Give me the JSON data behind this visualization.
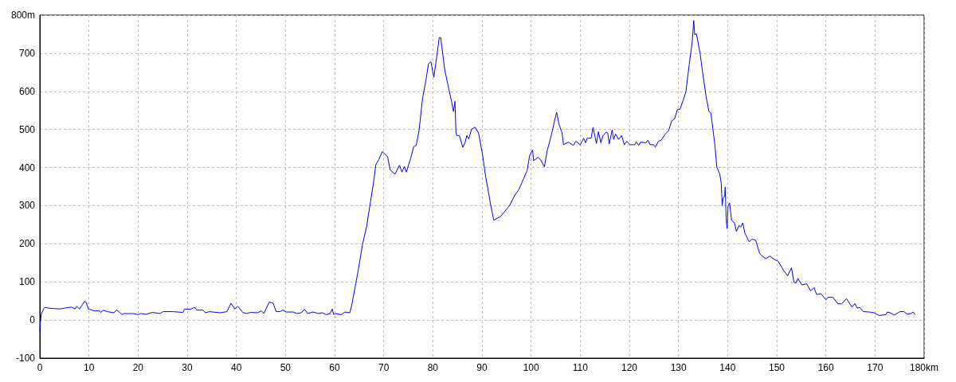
{
  "chart_data": {
    "type": "line",
    "grid": true,
    "marker": "none",
    "line_style": "solid",
    "xlim": [
      0,
      180
    ],
    "xticks": [
      0,
      10,
      20,
      30,
      40,
      50,
      60,
      70,
      80,
      90,
      100,
      110,
      120,
      130,
      140,
      150,
      160,
      170,
      {
        "value": 180,
        "label": "180km"
      }
    ],
    "ylim": [
      -100,
      800
    ],
    "yticks": [
      -100,
      0,
      100,
      200,
      300,
      400,
      500,
      600,
      700,
      {
        "value": 800,
        "label": "800m"
      }
    ],
    "x": [
      0,
      0.1,
      0.3,
      0.8,
      1.0,
      2.0,
      3.0,
      4.0,
      5.0,
      6.4,
      7.2,
      7.5,
      8.1,
      9.1,
      9.4,
      9.9,
      10.5,
      11,
      12.1,
      12.4,
      12.9,
      13.7,
      15.1,
      15.6,
      16.1,
      16.7,
      17.2,
      18.9,
      20,
      20.5,
      21.6,
      22.9,
      24.5,
      25.1,
      27,
      29.1,
      29.5,
      30.5,
      31.6,
      31.9,
      33.2,
      33.7,
      34.5,
      36.7,
      38.1,
      38.9,
      39.7,
      40.3,
      41.3,
      42.1,
      42.9,
      44.3,
      45.1,
      45.6,
      46.7,
      47.5,
      48.1,
      48.9,
      49.4,
      50.2,
      51.6,
      52.3,
      53.2,
      53.9,
      54.5,
      55.6,
      56.7,
      57.5,
      58.3,
      59.1,
      59.5,
      59.8,
      60.2,
      61.3,
      62.1,
      63.1,
      63.5,
      64.3,
      64.8,
      65.7,
      66.5,
      67.3,
      67.9,
      68.4,
      69,
      69.7,
      70.3,
      70.8,
      71.3,
      72.3,
      73.2,
      73.7,
      74.2,
      74.6,
      75.5,
      76.1,
      76.6,
      77.2,
      77.9,
      78.6,
      79.1,
      79.6,
      80.2,
      80.8,
      81.3,
      81.6,
      82.4,
      83.2,
      83.8,
      84.2,
      84.5,
      84.7,
      84.9,
      85.4,
      86.1,
      86.6,
      86.9,
      87.3,
      87.9,
      88.6,
      89.3,
      90.1,
      90.7,
      91.8,
      92.4,
      93.1,
      93.8,
      94.5,
      95.6,
      96.7,
      97.5,
      98.4,
      99.2,
      99.7,
      100.3,
      100.5,
      101.4,
      101.9,
      102.7,
      103.3,
      104.1,
      104.9,
      105.2,
      105.7,
      106.3,
      106.6,
      107.6,
      108.6,
      109.1,
      110,
      110.7,
      111.1,
      111.4,
      112.2,
      112.6,
      113.3,
      113.7,
      114.2,
      114.6,
      115.3,
      115.6,
      115.9,
      116.5,
      116.8,
      117.2,
      117.8,
      118.4,
      119,
      119.5,
      120.1,
      121.1,
      121.4,
      121.9,
      122.3,
      123.4,
      123.8,
      124.2,
      124.9,
      125.3,
      125.9,
      126.5,
      127.3,
      128,
      128.6,
      129.2,
      129.8,
      130.3,
      131,
      131.5,
      132.2,
      132.8,
      133.1,
      133.3,
      133.6,
      133.8,
      134.4,
      134.9,
      135.6,
      136.2,
      136.6,
      137.1,
      137.4,
      137.8,
      138.4,
      138.7,
      138.9,
      139.1,
      139.4,
      139.5,
      139.7,
      139.9,
      140.1,
      140.4,
      140.8,
      141.4,
      141.8,
      142.3,
      142.7,
      143.1,
      143.5,
      144.4,
      144.9,
      145.7,
      146.5,
      147,
      147.8,
      148.6,
      149.5,
      150.3,
      151.4,
      152.2,
      153,
      153.5,
      153.9,
      154.3,
      155.1,
      156.1,
      156.9,
      157.6,
      158.1,
      159,
      160,
      160.5,
      161.4,
      162.4,
      163.2,
      164.2,
      165.3,
      165.9,
      166.4,
      166.9,
      167.6,
      168.9,
      169.8,
      170.8,
      172.2,
      172.5,
      173.1,
      173.9,
      175.1,
      175.9,
      176.6,
      177.3,
      177.8,
      178.1
    ],
    "series": [
      {
        "color": "#0000ff",
        "values": [
          -30,
          -8,
          15,
          30,
          33,
          31,
          30,
          29,
          31,
          34,
          29,
          36,
          29,
          49,
          47,
          28,
          27,
          24,
          24,
          20,
          26,
          22,
          19,
          26,
          22,
          14,
          17,
          17,
          14,
          17,
          15,
          20,
          17,
          22,
          22,
          20,
          29,
          28,
          33,
          26,
          26,
          19,
          22,
          19,
          22,
          44,
          29,
          36,
          20,
          17,
          20,
          19,
          24,
          17,
          47,
          44,
          22,
          22,
          26,
          21,
          21,
          17,
          19,
          28,
          17,
          21,
          17,
          19,
          14,
          17,
          29,
          15,
          17,
          14,
          21,
          19,
          40,
          95,
          130,
          199,
          244,
          310,
          359,
          408,
          421,
          442,
          435,
          428,
          394,
          383,
          406,
          388,
          403,
          388,
          425,
          455,
          458,
          498,
          581,
          630,
          672,
          678,
          637,
          692,
          741,
          741,
          658,
          609,
          574,
          547,
          574,
          491,
          484,
          484,
          453,
          467,
          484,
          475,
          501,
          506,
          491,
          435,
          380,
          300,
          262,
          267,
          272,
          283,
          300,
          328,
          342,
          369,
          392,
          432,
          446,
          418,
          427,
          421,
          402,
          446,
          484,
          530,
          545,
          512,
          491,
          460,
          467,
          458,
          469,
          460,
          477,
          465,
          477,
          477,
          505,
          463,
          494,
          465,
          483,
          493,
          491,
          462,
          499,
          474,
          488,
          474,
          484,
          460,
          469,
          460,
          460,
          467,
          458,
          467,
          465,
          472,
          460,
          460,
          454,
          469,
          472,
          488,
          497,
          522,
          528,
          553,
          553,
          578,
          599,
          672,
          731,
          786,
          748,
          752,
          741,
          699,
          651,
          588,
          547,
          543,
          491,
          460,
          401,
          383,
          359,
          300,
          321,
          324,
          349,
          269,
          240,
          300,
          307,
          262,
          255,
          232,
          248,
          244,
          255,
          228,
          205,
          212,
          210,
          175,
          168,
          161,
          168,
          159,
          154,
          130,
          116,
          137,
          99,
          97,
          109,
          92,
          95,
          76,
          85,
          67,
          69,
          53,
          60,
          60,
          43,
          42,
          56,
          34,
          43,
          31,
          33,
          22,
          21,
          19,
          12,
          14,
          21,
          19,
          13,
          22,
          22,
          15,
          17,
          21,
          15
        ]
      }
    ]
  }
}
